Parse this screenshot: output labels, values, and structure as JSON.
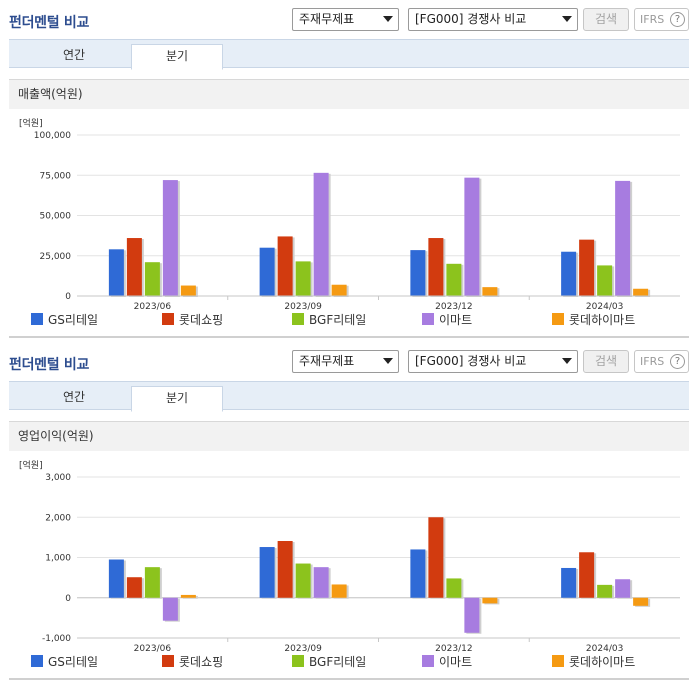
{
  "panels": [
    {
      "title": "펀더멘털 비교",
      "select1": "주재무제표",
      "select2": "[FG000] 경쟁사 비교",
      "search_label": "검색",
      "ifrs_label": "IFRS",
      "help_label": "?",
      "tabs": [
        "연간",
        "분기"
      ],
      "active_tab": "분기",
      "chart_title": "매출액(억원)"
    },
    {
      "title": "펀더멘털 비교",
      "select1": "주재무제표",
      "select2": "[FG000] 경쟁사 비교",
      "search_label": "검색",
      "ifrs_label": "IFRS",
      "help_label": "?",
      "tabs": [
        "연간",
        "분기"
      ],
      "active_tab": "분기",
      "chart_title": "영업이익(억원)"
    }
  ],
  "colors": {
    "GS리테일": "#2f6ad6",
    "롯데쇼핑": "#d23b0f",
    "BGF리테일": "#8cc31d",
    "이마트": "#a77ce0",
    "롯데하이마트": "#f59a12"
  },
  "chart_data": [
    {
      "type": "bar",
      "title": "매출액(억원)",
      "unit_label": "[억원]",
      "categories": [
        "2023/06",
        "2023/09",
        "2023/12",
        "2024/03"
      ],
      "ylim": [
        0,
        100000
      ],
      "yticks": [
        0,
        25000,
        50000,
        75000,
        100000
      ],
      "ytick_labels": [
        "0",
        "25,000",
        "50,000",
        "75,000",
        "100,000"
      ],
      "grid": true,
      "legend_position": "bottom",
      "series": [
        {
          "name": "GS리테일",
          "values": [
            29000,
            30000,
            28500,
            27500
          ]
        },
        {
          "name": "롯데쇼핑",
          "values": [
            36000,
            37000,
            36000,
            35000
          ]
        },
        {
          "name": "BGF리테일",
          "values": [
            21000,
            21500,
            20000,
            19000
          ]
        },
        {
          "name": "이마트",
          "values": [
            72000,
            76500,
            73500,
            71500
          ]
        },
        {
          "name": "롯데하이마트",
          "values": [
            6500,
            7000,
            5500,
            4500
          ]
        }
      ]
    },
    {
      "type": "bar",
      "title": "영업이익(억원)",
      "unit_label": "[억원]",
      "categories": [
        "2023/06",
        "2023/09",
        "2023/12",
        "2024/03"
      ],
      "ylim": [
        -1000,
        3000
      ],
      "yticks": [
        -1000,
        0,
        1000,
        2000,
        3000
      ],
      "ytick_labels": [
        "-1,000",
        "0",
        "1,000",
        "2,000",
        "3,000"
      ],
      "grid": true,
      "legend_position": "bottom",
      "series": [
        {
          "name": "GS리테일",
          "values": [
            950,
            1260,
            1200,
            740
          ]
        },
        {
          "name": "롯데쇼핑",
          "values": [
            510,
            1410,
            2000,
            1130
          ]
        },
        {
          "name": "BGF리테일",
          "values": [
            760,
            850,
            480,
            320
          ]
        },
        {
          "name": "이마트",
          "values": [
            -570,
            760,
            -870,
            460
          ]
        },
        {
          "name": "롯데하이마트",
          "values": [
            70,
            330,
            -140,
            -200
          ]
        }
      ]
    }
  ]
}
